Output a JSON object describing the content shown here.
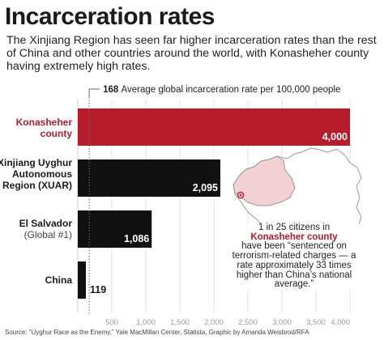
{
  "title": "Incarceration rates",
  "subtitle": "The Xinjiang Region has seen far higher incarceration rates than the rest of China and other countries around the world, with Konasheher county having extremely high rates.",
  "colors": {
    "highlight": "#b71c2b",
    "bar": "#111111",
    "grid": "#e0e0e0",
    "map_land": "#ffffff",
    "map_region": "#f2d0d4",
    "map_border": "#999999"
  },
  "annotation": {
    "line1": "1 in 25 citizens in",
    "highlight": "Konasheher county",
    "rest": "have been “sentenced on terrorism-related charges — a rate approximately 33 times higher than China’s national average.”"
  },
  "source": "Source: “Uyghur Race as the Enemy,” Yale MacMillan Center, Statista, Graphic by Amanda Weisbrod/RFA",
  "chart_data": {
    "type": "bar",
    "orientation": "horizontal",
    "categories": [
      {
        "label_lines": [
          "Konasheher",
          "county"
        ],
        "sub": "",
        "highlight": true
      },
      {
        "label_lines": [
          "Xinjiang Uyghur",
          "Autonomous",
          "Region (XUAR)"
        ],
        "sub": "",
        "highlight": false
      },
      {
        "label_lines": [
          "El Salvador"
        ],
        "sub": "(Global #1)",
        "highlight": false
      },
      {
        "label_lines": [
          "China"
        ],
        "sub": "",
        "highlight": false
      }
    ],
    "values": [
      4000,
      2095,
      1086,
      119
    ],
    "value_labels": [
      "4,000",
      "2,095",
      "1,086",
      "119"
    ],
    "xlim": [
      0,
      4000
    ],
    "xticks": [
      500,
      1000,
      1500,
      2000,
      2500,
      3000,
      3500,
      4000
    ],
    "xtick_labels": [
      "500",
      "1,000",
      "1,500",
      "2,000",
      "2,500",
      "3,000",
      "3,500",
      "4,000"
    ],
    "reference_line": {
      "value": 168,
      "value_label": "168",
      "label": "Average global incarceration rate per 100,000 people"
    },
    "grid": true
  }
}
